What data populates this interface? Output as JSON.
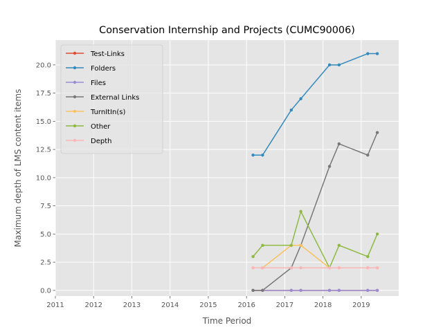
{
  "chart_data": {
    "type": "line",
    "title": "Conservation Internship and Projects (CUMC90006)",
    "xlabel": "Time Period",
    "ylabel": "Maximum depth of LMS content items",
    "xlim": [
      2011,
      2019.98
    ],
    "ylim": [
      -0.5,
      22.2
    ],
    "x_ticks": [
      2011,
      2012,
      2013,
      2014,
      2015,
      2016,
      2017,
      2018,
      2019
    ],
    "x_tick_labels": [
      "2011",
      "2012",
      "2013",
      "2014",
      "2015",
      "2016",
      "2017",
      "2018",
      "2019"
    ],
    "y_ticks": [
      0,
      2.5,
      5,
      7.5,
      10,
      12.5,
      15,
      17.5,
      20
    ],
    "y_tick_labels": [
      "0.0",
      "2.5",
      "5.0",
      "7.5",
      "10.0",
      "12.5",
      "15.0",
      "17.5",
      "20.0"
    ],
    "grid": true,
    "legend_position": "top-left",
    "x": [
      2016.17,
      2016.42,
      2017.17,
      2017.42,
      2018.17,
      2018.42,
      2019.17,
      2019.42
    ],
    "series": [
      {
        "name": "Test-Links",
        "color": "#E24A33",
        "values": [
          0,
          0,
          0,
          0,
          0,
          0,
          0,
          0
        ]
      },
      {
        "name": "Folders",
        "color": "#348ABD",
        "values": [
          12,
          12,
          16,
          17,
          20,
          20,
          21,
          21
        ]
      },
      {
        "name": "Files",
        "color": "#988ED5",
        "values": [
          0,
          0,
          0,
          0,
          0,
          0,
          0,
          0
        ]
      },
      {
        "name": "External Links",
        "color": "#777777",
        "values": [
          0,
          0,
          2,
          4,
          11,
          13,
          12,
          14
        ]
      },
      {
        "name": "TurnItIn(s)",
        "color": "#FBC15E",
        "values": [
          2,
          2,
          4,
          4,
          2,
          2,
          2,
          2
        ]
      },
      {
        "name": "Other",
        "color": "#8EBA42",
        "values": [
          3,
          4,
          4,
          7,
          2,
          4,
          3,
          5
        ]
      },
      {
        "name": "Depth",
        "color": "#FFB5B8",
        "values": [
          2,
          2,
          2,
          2,
          2,
          2,
          2,
          2
        ]
      }
    ]
  }
}
